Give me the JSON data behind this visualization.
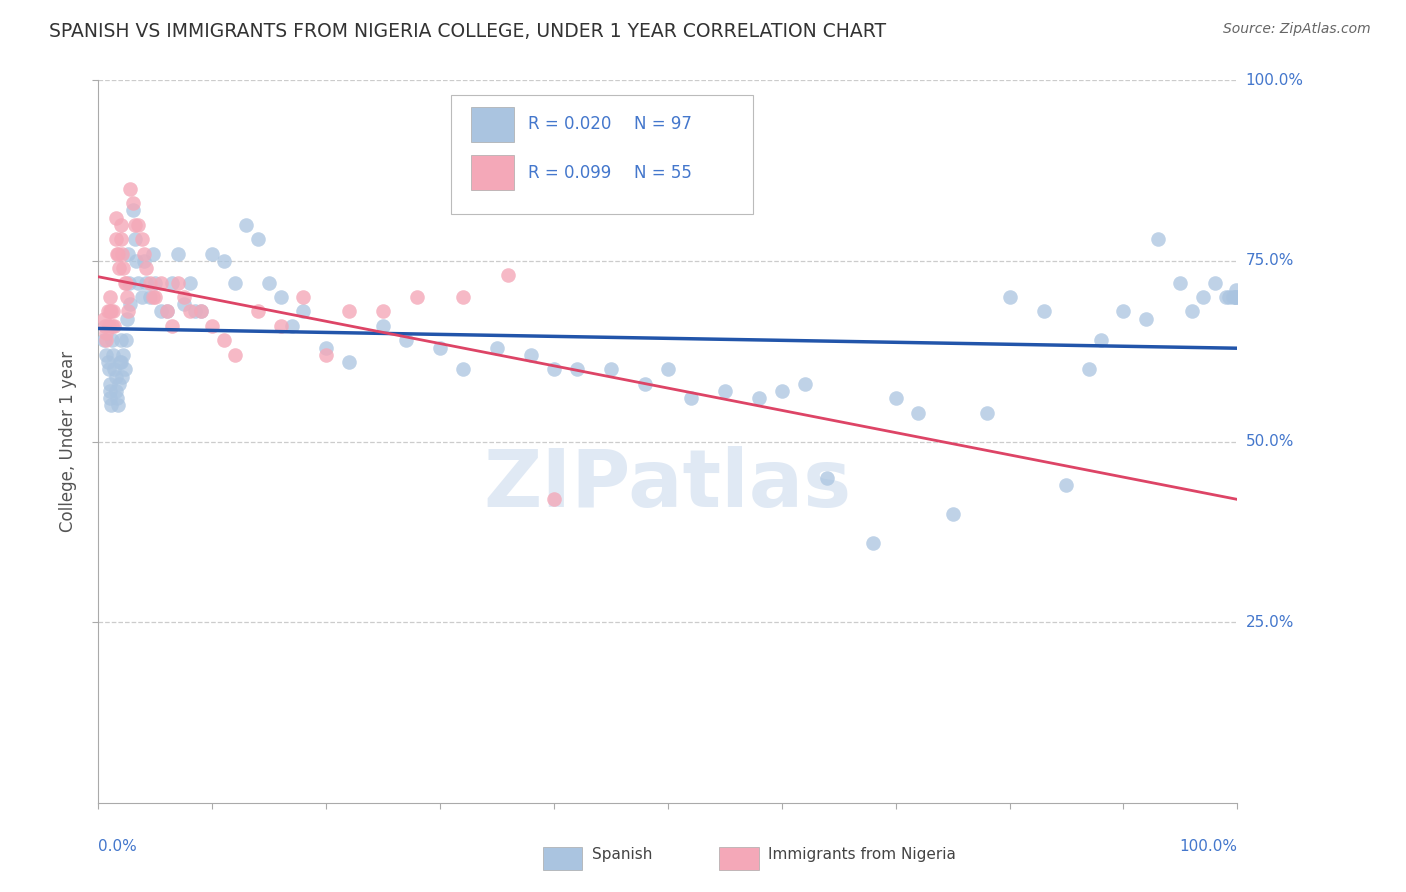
{
  "title": "SPANISH VS IMMIGRANTS FROM NIGERIA COLLEGE, UNDER 1 YEAR CORRELATION CHART",
  "source": "Source: ZipAtlas.com",
  "ylabel": "College, Under 1 year",
  "r1": 0.02,
  "r2": 0.099,
  "n1": 97,
  "n2": 55,
  "blue_color": "#aac4e0",
  "pink_color": "#f4a8b8",
  "blue_line_color": "#2255aa",
  "pink_line_color": "#dd4466",
  "text_color": "#4477cc",
  "title_color": "#333333",
  "watermark": "ZIPatlas",
  "blue_x": [
    0.005,
    0.007,
    0.008,
    0.009,
    0.01,
    0.01,
    0.01,
    0.011,
    0.012,
    0.013,
    0.014,
    0.015,
    0.015,
    0.016,
    0.017,
    0.018,
    0.019,
    0.02,
    0.02,
    0.021,
    0.022,
    0.023,
    0.024,
    0.025,
    0.026,
    0.027,
    0.028,
    0.03,
    0.032,
    0.033,
    0.035,
    0.038,
    0.04,
    0.042,
    0.045,
    0.048,
    0.05,
    0.055,
    0.06,
    0.065,
    0.07,
    0.075,
    0.08,
    0.085,
    0.09,
    0.1,
    0.11,
    0.12,
    0.13,
    0.14,
    0.15,
    0.16,
    0.17,
    0.18,
    0.2,
    0.22,
    0.25,
    0.27,
    0.3,
    0.32,
    0.35,
    0.38,
    0.4,
    0.42,
    0.45,
    0.48,
    0.5,
    0.52,
    0.55,
    0.58,
    0.6,
    0.62,
    0.64,
    0.68,
    0.7,
    0.72,
    0.75,
    0.78,
    0.8,
    0.83,
    0.85,
    0.87,
    0.88,
    0.9,
    0.92,
    0.93,
    0.95,
    0.96,
    0.97,
    0.98,
    0.99,
    0.993,
    0.996,
    0.998,
    0.999,
    0.999,
    0.999
  ],
  "blue_y": [
    0.64,
    0.62,
    0.61,
    0.6,
    0.58,
    0.57,
    0.56,
    0.55,
    0.64,
    0.62,
    0.6,
    0.59,
    0.57,
    0.56,
    0.55,
    0.58,
    0.61,
    0.64,
    0.61,
    0.59,
    0.62,
    0.6,
    0.64,
    0.67,
    0.76,
    0.72,
    0.69,
    0.82,
    0.78,
    0.75,
    0.72,
    0.7,
    0.75,
    0.72,
    0.7,
    0.76,
    0.72,
    0.68,
    0.68,
    0.72,
    0.76,
    0.69,
    0.72,
    0.68,
    0.68,
    0.76,
    0.75,
    0.72,
    0.8,
    0.78,
    0.72,
    0.7,
    0.66,
    0.68,
    0.63,
    0.61,
    0.66,
    0.64,
    0.63,
    0.6,
    0.63,
    0.62,
    0.6,
    0.6,
    0.6,
    0.58,
    0.6,
    0.56,
    0.57,
    0.56,
    0.57,
    0.58,
    0.45,
    0.36,
    0.56,
    0.54,
    0.4,
    0.54,
    0.7,
    0.68,
    0.44,
    0.6,
    0.64,
    0.68,
    0.67,
    0.78,
    0.72,
    0.68,
    0.7,
    0.72,
    0.7,
    0.7,
    0.7,
    0.7,
    0.7,
    0.7,
    0.71
  ],
  "pink_x": [
    0.005,
    0.006,
    0.007,
    0.007,
    0.008,
    0.009,
    0.01,
    0.01,
    0.011,
    0.012,
    0.013,
    0.014,
    0.015,
    0.015,
    0.016,
    0.017,
    0.018,
    0.02,
    0.02,
    0.021,
    0.022,
    0.023,
    0.024,
    0.025,
    0.026,
    0.028,
    0.03,
    0.032,
    0.035,
    0.038,
    0.04,
    0.042,
    0.045,
    0.048,
    0.05,
    0.055,
    0.06,
    0.065,
    0.07,
    0.075,
    0.08,
    0.09,
    0.1,
    0.11,
    0.12,
    0.14,
    0.16,
    0.18,
    0.2,
    0.22,
    0.25,
    0.28,
    0.32,
    0.36,
    0.4
  ],
  "pink_y": [
    0.67,
    0.66,
    0.65,
    0.64,
    0.68,
    0.66,
    0.7,
    0.68,
    0.68,
    0.66,
    0.68,
    0.66,
    0.81,
    0.78,
    0.76,
    0.76,
    0.74,
    0.8,
    0.78,
    0.76,
    0.74,
    0.72,
    0.72,
    0.7,
    0.68,
    0.85,
    0.83,
    0.8,
    0.8,
    0.78,
    0.76,
    0.74,
    0.72,
    0.7,
    0.7,
    0.72,
    0.68,
    0.66,
    0.72,
    0.7,
    0.68,
    0.68,
    0.66,
    0.64,
    0.62,
    0.68,
    0.66,
    0.7,
    0.62,
    0.68,
    0.68,
    0.7,
    0.7,
    0.73,
    0.42
  ]
}
